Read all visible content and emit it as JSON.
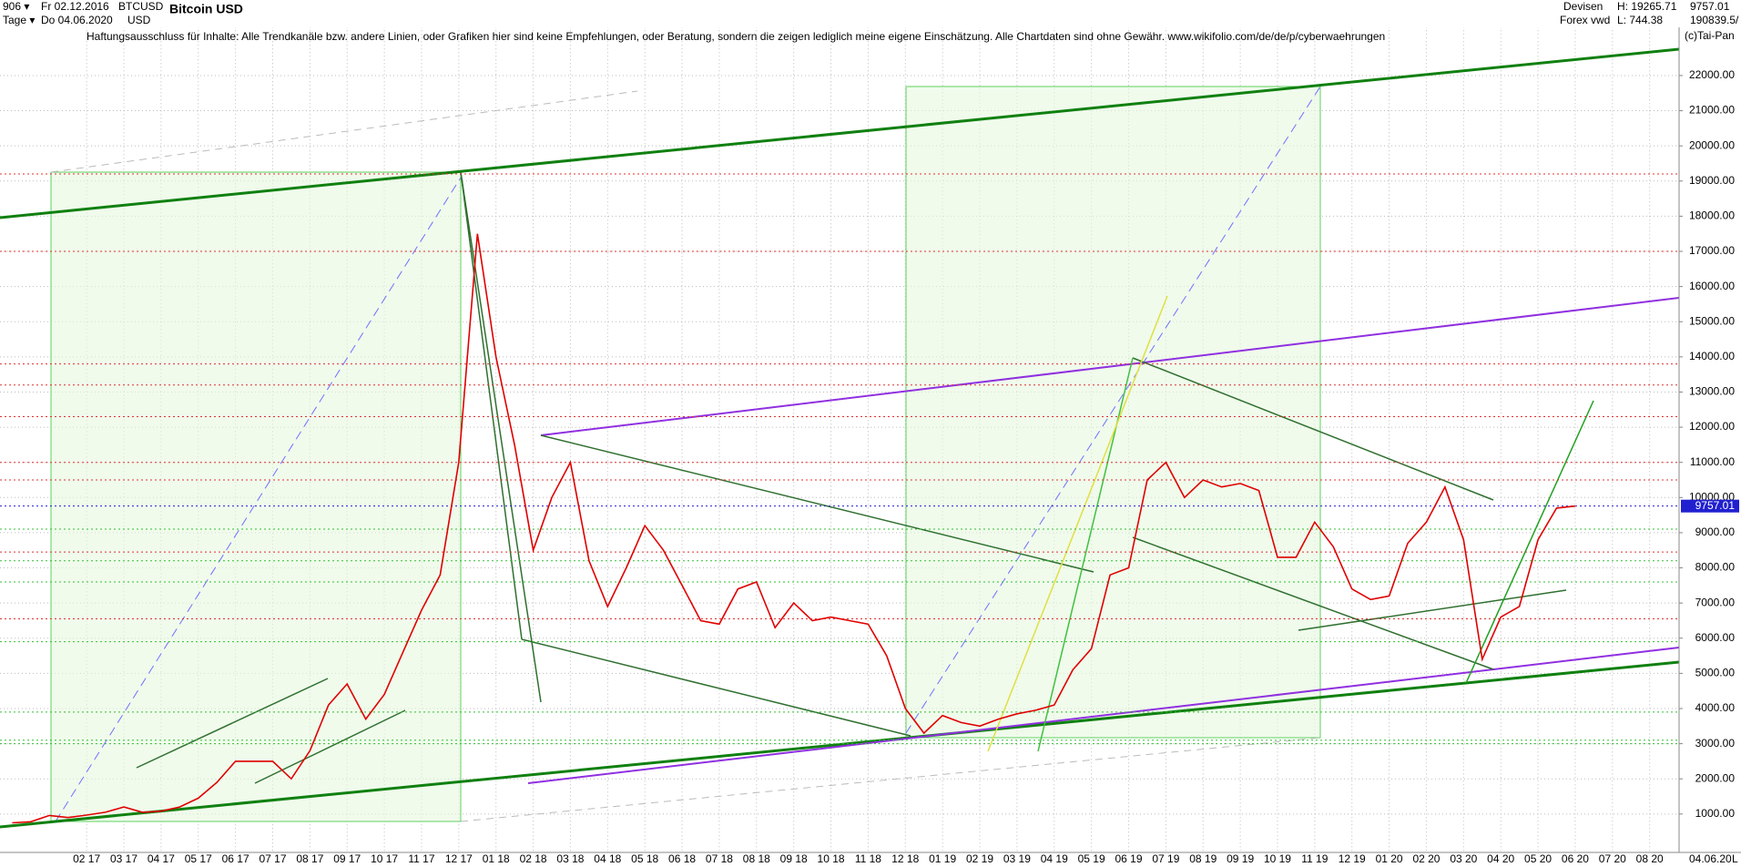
{
  "chart_data": {
    "type": "line",
    "title": "Bitcoin USD",
    "subtitle": "Haftungsausschluss für Inhalte: Alle Trendkanäle bzw. andere Linien, oder Grafiken hier sind keine Empfehlungen, oder Beratung, sondern die zeigen lediglich meine eigene Einschätzung. Alle Chartdaten sind ohne Gewähr.  www.wikifolio.com/de/de/p/cyberwaehrungen",
    "info": {
      "id": "906 ▾",
      "start": "Fr 02.12.2016",
      "symbol": "BTCUSD",
      "period": "Tage ▾",
      "end": "Do 04.06.2020",
      "currency": "USD",
      "market": "Devisen",
      "source": "Forex vwd",
      "high": "H: 19265.71",
      "low": "L: 744.38",
      "volume": "190839.5/",
      "copyright": "(c)Tai-Pan",
      "date": "04.06.20",
      "scale": "L"
    },
    "categories": [
      null,
      null,
      null,
      null,
      "02 17",
      null,
      "03 17",
      null,
      "04 17",
      null,
      "05 17",
      null,
      "06 17",
      null,
      "07 17",
      null,
      "08 17",
      null,
      "09 17",
      null,
      "10 17",
      null,
      "11 17",
      null,
      "12 17",
      null,
      "01 18",
      null,
      "02 18",
      null,
      "03 18",
      null,
      "04 18",
      null,
      "05 18",
      null,
      "06 18",
      null,
      "07 18",
      null,
      "08 18",
      null,
      "09 18",
      null,
      "10 18",
      null,
      "11 18",
      null,
      "12 18",
      null,
      "01 19",
      null,
      "02 19",
      null,
      "03 19",
      null,
      "04 19",
      null,
      "05 19",
      null,
      "06 19",
      null,
      "07 19",
      null,
      "08 19",
      null,
      "09 19",
      null,
      "10 19",
      null,
      "11 19",
      null,
      "12 19",
      null,
      "01 20",
      null,
      "02 20",
      null,
      "03 20",
      null,
      "04 20",
      null,
      "05 20",
      null,
      "06 20",
      null,
      "07 20",
      null,
      "08 20",
      null
    ],
    "series": [
      {
        "name": "BTCUSD",
        "color": "#e00000",
        "values": [
          750,
          780,
          960,
          900,
          970,
          1050,
          1200,
          1050,
          1080,
          1200,
          1450,
          1900,
          2500,
          2500,
          2500,
          2000,
          2800,
          4100,
          4700,
          3700,
          4400,
          5600,
          6800,
          7800,
          11000,
          17500,
          14000,
          11500,
          8500,
          10000,
          11000,
          8200,
          6900,
          8000,
          9200,
          8500,
          7500,
          6500,
          6400,
          7400,
          7600,
          6300,
          7000,
          6500,
          6600,
          6500,
          6400,
          5500,
          4000,
          3300,
          3800,
          3600,
          3500,
          3700,
          3850,
          3950,
          4100,
          5100,
          5700,
          7800,
          8000,
          10500,
          11000,
          10000,
          10500,
          10300,
          10400,
          10200,
          8300,
          8300,
          9300,
          8600,
          7400,
          7100,
          7200,
          8700,
          9300,
          10300,
          8800,
          5400,
          6600,
          6900,
          8800,
          9700,
          9757.01,
          null,
          null,
          null,
          null,
          null
        ]
      }
    ],
    "last_price": 9757.01,
    "hlines": [
      {
        "color": "#e03030",
        "values": [
          19200,
          17000,
          13800,
          13200,
          12300,
          11000,
          10500,
          8450,
          6550
        ]
      },
      {
        "color": "#30c030",
        "values": [
          9100,
          8200,
          7600,
          5900,
          3900,
          3100,
          3000
        ]
      }
    ],
    "ylim": [
      -100,
      23700
    ],
    "yticks": [
      {
        "value": 1000,
        "label": "1000.00"
      },
      {
        "value": 2000,
        "label": "2000.00"
      },
      {
        "value": 3000,
        "label": "3000.00"
      },
      {
        "value": 4000,
        "label": "4000.00"
      },
      {
        "value": 5000,
        "label": "5000.00"
      },
      {
        "value": 6000,
        "label": "6000.00"
      },
      {
        "value": 7000,
        "label": "7000.00"
      },
      {
        "value": 8000,
        "label": "8000.00"
      },
      {
        "value": 9000,
        "label": "9000.00"
      },
      {
        "value": 10000,
        "label": "10000.00"
      },
      {
        "value": 11000,
        "label": "11000.00"
      },
      {
        "value": 12000,
        "label": "12000.00"
      },
      {
        "value": 13000,
        "label": "13000.00"
      },
      {
        "value": 14000,
        "label": "14000.00"
      },
      {
        "value": 15000,
        "label": "15000.00"
      },
      {
        "value": 16000,
        "label": "16000.00"
      },
      {
        "value": 17000,
        "label": "17000.00"
      },
      {
        "value": 18000,
        "label": "18000.00"
      },
      {
        "value": 19000,
        "label": "19000.00"
      },
      {
        "value": 20000,
        "label": "20000.00"
      },
      {
        "value": 21000,
        "label": "21000.00"
      },
      {
        "value": 22000,
        "label": "22000.00"
      }
    ],
    "grid": true
  }
}
